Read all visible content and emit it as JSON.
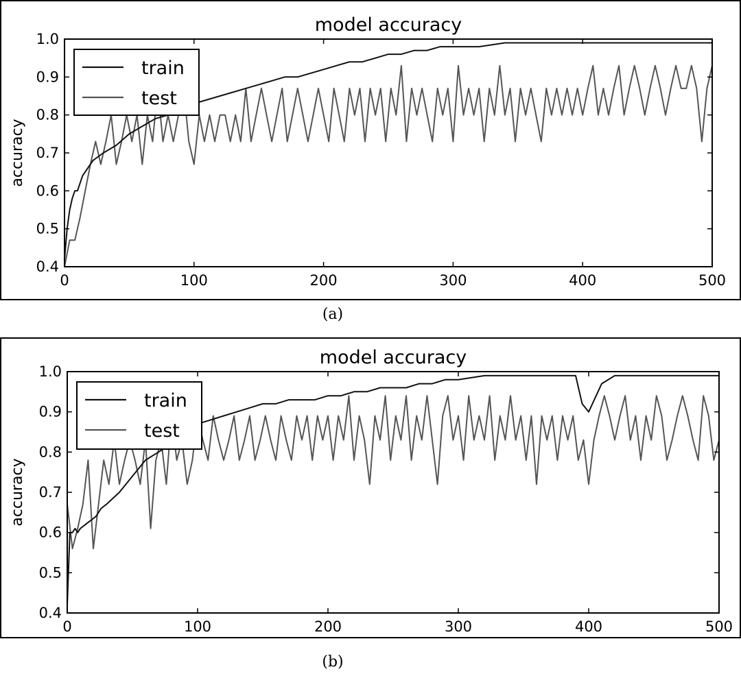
{
  "chart_data": [
    {
      "type": "line",
      "caption": "(a)",
      "title": "model accuracy",
      "xlabel": "",
      "ylabel": "accuracy",
      "xlim": [
        0,
        500
      ],
      "ylim": [
        0.4,
        1.0
      ],
      "xticks": [
        "0",
        "100",
        "200",
        "300",
        "400",
        "500"
      ],
      "yticks": [
        "0.4",
        "0.5",
        "0.6",
        "0.7",
        "0.8",
        "0.9",
        "1.0"
      ],
      "grid": false,
      "legend_position": "upper-left",
      "series": [
        {
          "name": "train",
          "color": "#111111",
          "x": [
            0,
            2,
            4,
            6,
            8,
            10,
            14,
            18,
            22,
            26,
            30,
            40,
            50,
            60,
            70,
            80,
            90,
            100,
            110,
            120,
            130,
            140,
            150,
            160,
            170,
            180,
            190,
            200,
            210,
            220,
            230,
            240,
            250,
            260,
            270,
            280,
            290,
            300,
            320,
            340,
            360,
            380,
            400,
            420,
            440,
            460,
            480,
            500
          ],
          "values": [
            0.42,
            0.5,
            0.55,
            0.58,
            0.6,
            0.6,
            0.64,
            0.66,
            0.68,
            0.69,
            0.7,
            0.72,
            0.75,
            0.77,
            0.79,
            0.8,
            0.81,
            0.83,
            0.84,
            0.85,
            0.86,
            0.87,
            0.88,
            0.89,
            0.9,
            0.9,
            0.91,
            0.92,
            0.93,
            0.94,
            0.94,
            0.95,
            0.96,
            0.96,
            0.97,
            0.97,
            0.98,
            0.98,
            0.98,
            0.99,
            0.99,
            0.99,
            0.99,
            0.99,
            0.99,
            0.99,
            0.99,
            0.99
          ]
        },
        {
          "name": "test",
          "color": "#555555",
          "x": [
            0,
            4,
            8,
            12,
            16,
            20,
            24,
            28,
            32,
            36,
            40,
            44,
            48,
            52,
            56,
            60,
            64,
            68,
            72,
            76,
            80,
            84,
            88,
            92,
            96,
            100,
            104,
            108,
            112,
            116,
            120,
            124,
            128,
            132,
            136,
            140,
            144,
            148,
            152,
            156,
            160,
            164,
            168,
            172,
            176,
            180,
            184,
            188,
            192,
            196,
            200,
            204,
            208,
            212,
            216,
            220,
            224,
            228,
            232,
            236,
            240,
            244,
            248,
            252,
            256,
            260,
            264,
            268,
            272,
            276,
            280,
            284,
            288,
            292,
            296,
            300,
            304,
            308,
            312,
            316,
            320,
            324,
            328,
            332,
            336,
            340,
            344,
            348,
            352,
            356,
            360,
            364,
            368,
            372,
            376,
            380,
            384,
            388,
            392,
            396,
            400,
            404,
            408,
            412,
            416,
            420,
            424,
            428,
            432,
            436,
            440,
            444,
            448,
            452,
            456,
            460,
            464,
            468,
            472,
            476,
            480,
            484,
            488,
            492,
            496,
            500
          ],
          "values": [
            0.4,
            0.47,
            0.47,
            0.53,
            0.6,
            0.67,
            0.73,
            0.67,
            0.73,
            0.8,
            0.67,
            0.73,
            0.8,
            0.73,
            0.8,
            0.67,
            0.8,
            0.73,
            0.87,
            0.73,
            0.8,
            0.73,
            0.8,
            0.87,
            0.73,
            0.67,
            0.8,
            0.73,
            0.8,
            0.73,
            0.8,
            0.8,
            0.73,
            0.8,
            0.73,
            0.87,
            0.73,
            0.8,
            0.87,
            0.8,
            0.73,
            0.8,
            0.87,
            0.73,
            0.8,
            0.87,
            0.8,
            0.73,
            0.8,
            0.87,
            0.8,
            0.73,
            0.87,
            0.8,
            0.73,
            0.87,
            0.8,
            0.87,
            0.73,
            0.87,
            0.8,
            0.87,
            0.73,
            0.87,
            0.8,
            0.93,
            0.73,
            0.87,
            0.8,
            0.87,
            0.8,
            0.73,
            0.87,
            0.8,
            0.87,
            0.73,
            0.93,
            0.8,
            0.87,
            0.8,
            0.87,
            0.73,
            0.87,
            0.8,
            0.93,
            0.8,
            0.87,
            0.73,
            0.87,
            0.8,
            0.87,
            0.8,
            0.73,
            0.87,
            0.8,
            0.87,
            0.8,
            0.87,
            0.8,
            0.87,
            0.8,
            0.87,
            0.93,
            0.8,
            0.87,
            0.8,
            0.87,
            0.93,
            0.8,
            0.87,
            0.93,
            0.87,
            0.8,
            0.87,
            0.93,
            0.87,
            0.8,
            0.87,
            0.93,
            0.87,
            0.87,
            0.93,
            0.87,
            0.73,
            0.87,
            0.93
          ]
        }
      ]
    },
    {
      "type": "line",
      "caption": "(b)",
      "title": "model accuracy",
      "xlabel": "",
      "ylabel": "accuracy",
      "xlim": [
        0,
        500
      ],
      "ylim": [
        0.4,
        1.0
      ],
      "xticks": [
        "0",
        "100",
        "200",
        "300",
        "400",
        "500"
      ],
      "yticks": [
        "0.4",
        "0.5",
        "0.6",
        "0.7",
        "0.8",
        "0.9",
        "1.0"
      ],
      "grid": false,
      "legend_position": "upper-left",
      "series": [
        {
          "name": "train",
          "color": "#111111",
          "x": [
            0,
            2,
            4,
            6,
            8,
            10,
            14,
            18,
            22,
            26,
            30,
            40,
            50,
            60,
            70,
            80,
            90,
            100,
            110,
            120,
            130,
            140,
            150,
            160,
            170,
            180,
            190,
            200,
            210,
            220,
            230,
            240,
            250,
            260,
            270,
            280,
            290,
            300,
            320,
            340,
            360,
            380,
            390,
            395,
            400,
            410,
            420,
            440,
            460,
            480,
            500
          ],
          "values": [
            0.42,
            0.6,
            0.6,
            0.61,
            0.6,
            0.61,
            0.62,
            0.63,
            0.64,
            0.66,
            0.67,
            0.7,
            0.74,
            0.78,
            0.8,
            0.82,
            0.85,
            0.87,
            0.88,
            0.89,
            0.9,
            0.91,
            0.92,
            0.92,
            0.93,
            0.93,
            0.93,
            0.94,
            0.94,
            0.95,
            0.95,
            0.96,
            0.96,
            0.96,
            0.97,
            0.97,
            0.98,
            0.98,
            0.99,
            0.99,
            0.99,
            0.99,
            0.99,
            0.92,
            0.9,
            0.97,
            0.99,
            0.99,
            0.99,
            0.99,
            0.99
          ]
        },
        {
          "name": "test",
          "color": "#555555",
          "x": [
            0,
            4,
            8,
            12,
            16,
            20,
            24,
            28,
            32,
            36,
            40,
            44,
            48,
            52,
            56,
            60,
            64,
            68,
            72,
            76,
            80,
            84,
            88,
            92,
            96,
            100,
            104,
            108,
            112,
            116,
            120,
            124,
            128,
            132,
            136,
            140,
            144,
            148,
            152,
            156,
            160,
            164,
            168,
            172,
            176,
            180,
            184,
            188,
            192,
            196,
            200,
            204,
            208,
            212,
            216,
            220,
            224,
            228,
            232,
            236,
            240,
            244,
            248,
            252,
            256,
            260,
            264,
            268,
            272,
            276,
            280,
            284,
            288,
            292,
            296,
            300,
            304,
            308,
            312,
            316,
            320,
            324,
            328,
            332,
            336,
            340,
            344,
            348,
            352,
            356,
            360,
            364,
            368,
            372,
            376,
            380,
            384,
            388,
            392,
            396,
            400,
            404,
            408,
            412,
            416,
            420,
            424,
            428,
            432,
            436,
            440,
            444,
            448,
            452,
            456,
            460,
            464,
            468,
            472,
            476,
            480,
            484,
            488,
            492,
            496,
            500
          ],
          "values": [
            0.67,
            0.56,
            0.61,
            0.67,
            0.78,
            0.56,
            0.67,
            0.78,
            0.72,
            0.83,
            0.72,
            0.78,
            0.83,
            0.78,
            0.72,
            0.83,
            0.61,
            0.78,
            0.83,
            0.72,
            0.89,
            0.78,
            0.83,
            0.72,
            0.78,
            0.89,
            0.83,
            0.78,
            0.89,
            0.83,
            0.78,
            0.83,
            0.89,
            0.78,
            0.83,
            0.89,
            0.78,
            0.83,
            0.89,
            0.83,
            0.78,
            0.89,
            0.83,
            0.78,
            0.89,
            0.83,
            0.89,
            0.78,
            0.89,
            0.83,
            0.89,
            0.78,
            0.89,
            0.83,
            0.94,
            0.78,
            0.89,
            0.83,
            0.72,
            0.89,
            0.83,
            0.94,
            0.78,
            0.89,
            0.83,
            0.94,
            0.78,
            0.89,
            0.83,
            0.94,
            0.83,
            0.72,
            0.89,
            0.94,
            0.83,
            0.89,
            0.78,
            0.94,
            0.83,
            0.89,
            0.83,
            0.94,
            0.78,
            0.89,
            0.83,
            0.94,
            0.83,
            0.89,
            0.78,
            0.89,
            0.72,
            0.89,
            0.83,
            0.89,
            0.78,
            0.89,
            0.83,
            0.89,
            0.78,
            0.83,
            0.72,
            0.83,
            0.89,
            0.94,
            0.89,
            0.83,
            0.89,
            0.94,
            0.83,
            0.89,
            0.78,
            0.89,
            0.83,
            0.94,
            0.89,
            0.78,
            0.83,
            0.89,
            0.94,
            0.89,
            0.83,
            0.78,
            0.94,
            0.89,
            0.78,
            0.83
          ]
        }
      ]
    }
  ]
}
